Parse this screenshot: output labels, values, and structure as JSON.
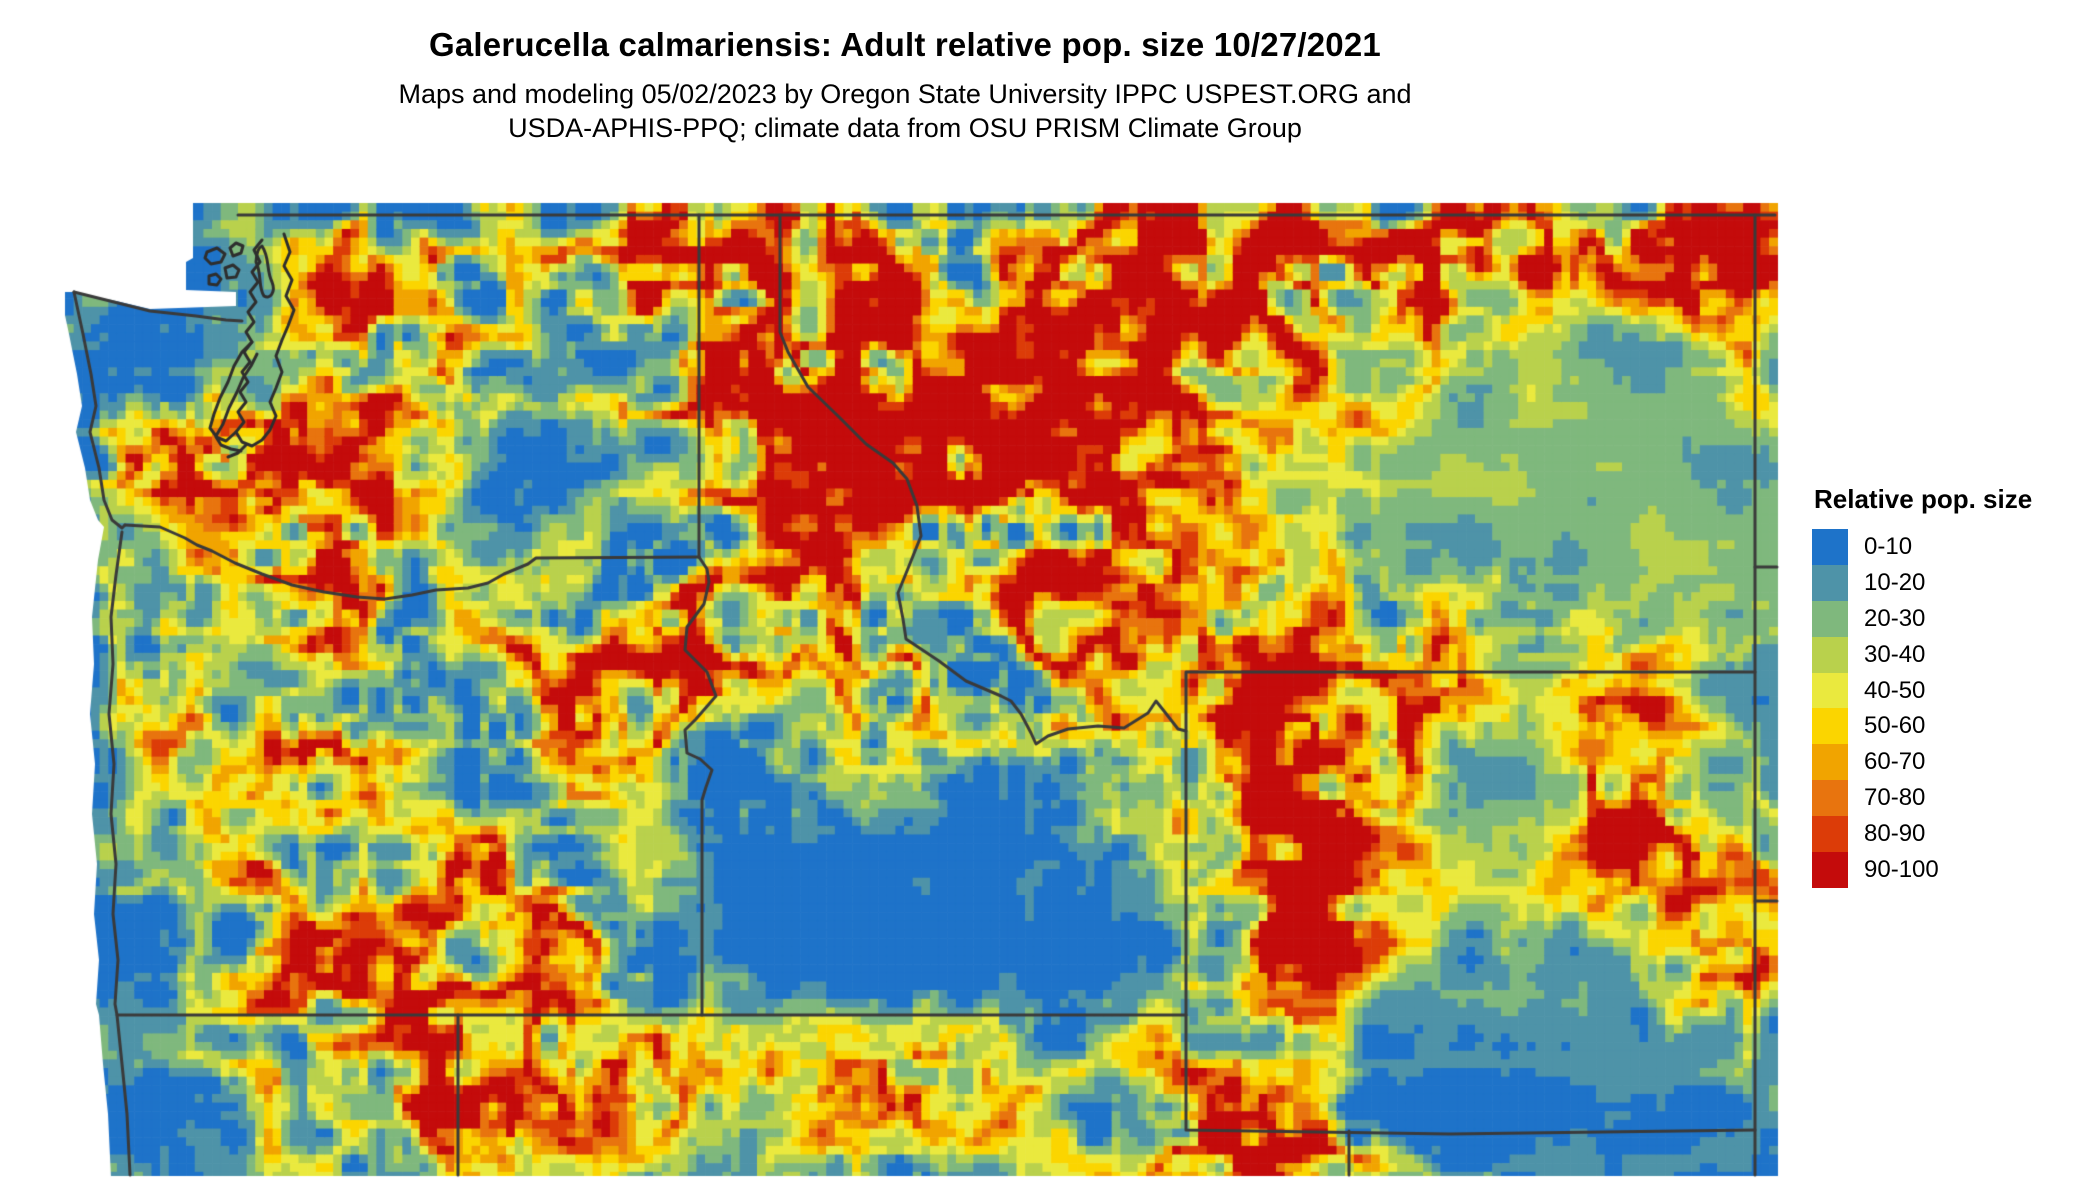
{
  "header": {
    "title": "Galerucella calmariensis: Adult relative pop. size 10/27/2021",
    "subtitle_line1": "Maps and modeling 05/02/2023 by Oregon State University IPPC USPEST.ORG and",
    "subtitle_line2": "USDA-APHIS-PPQ; climate data from OSU PRISM Climate Group"
  },
  "legend": {
    "title": "Relative pop. size",
    "items": [
      {
        "label": "0-10",
        "color": "#1e73c9"
      },
      {
        "label": "10-20",
        "color": "#4e93a8"
      },
      {
        "label": "20-30",
        "color": "#7fb87d"
      },
      {
        "label": "30-40",
        "color": "#b9d14c"
      },
      {
        "label": "40-50",
        "color": "#eae93e"
      },
      {
        "label": "50-60",
        "color": "#fbd500"
      },
      {
        "label": "60-70",
        "color": "#f1a400"
      },
      {
        "label": "70-80",
        "color": "#e8740e"
      },
      {
        "label": "80-90",
        "color": "#dc3c08"
      },
      {
        "label": "90-100",
        "color": "#c40b0b"
      }
    ]
  },
  "map": {
    "background_color": "#ffffff",
    "water_color": "#ffffff",
    "border_color": "#3a3a3a",
    "coastline_color": "#2e2e2e",
    "value_range": [
      0,
      100
    ],
    "units": "relative population size (0-100)"
  }
}
